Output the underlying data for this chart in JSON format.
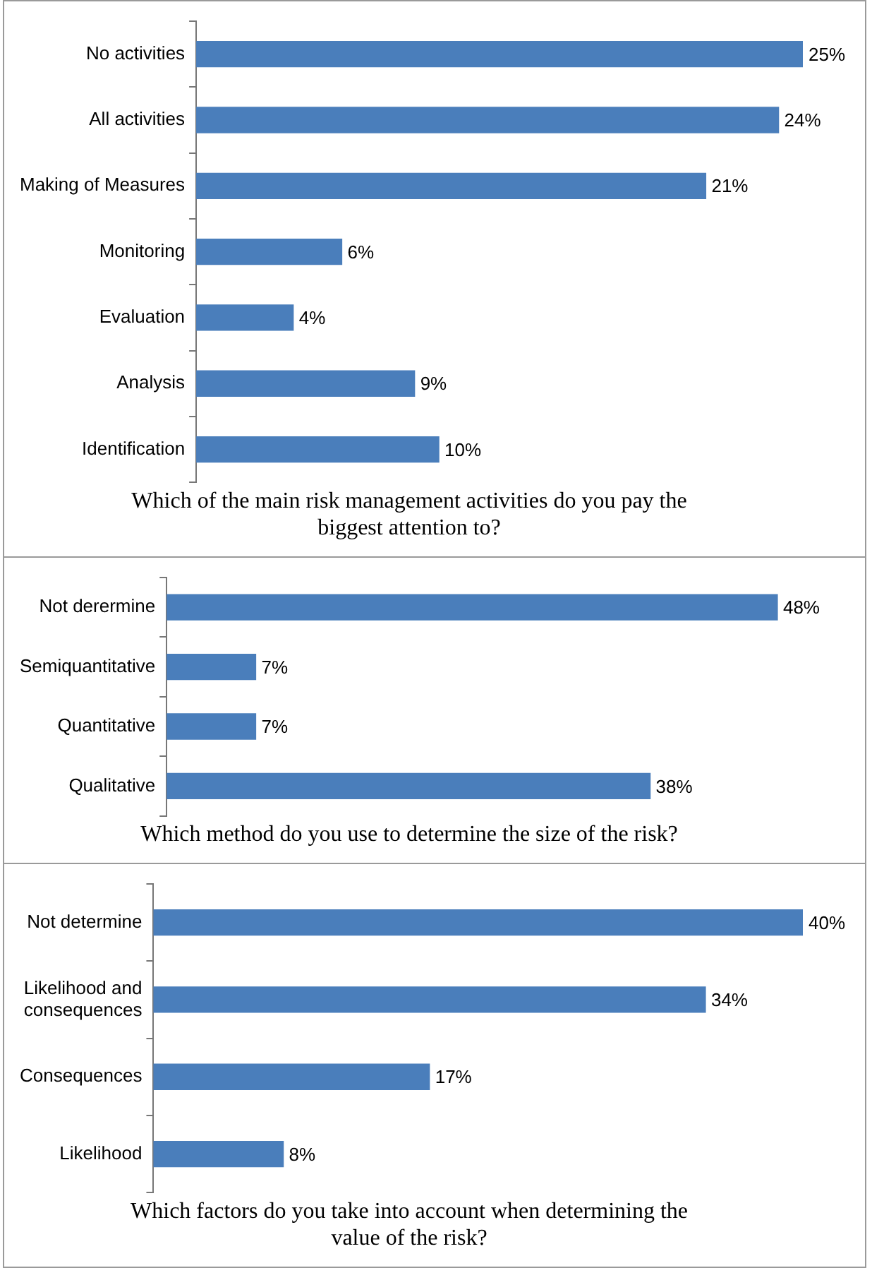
{
  "chart_data": [
    {
      "type": "bar",
      "orientation": "horizontal",
      "title": "Which of the main risk management activities do you pay the biggest attention to?",
      "categories": [
        "No activities",
        "All activities",
        "Making of Measures",
        "Monitoring",
        "Evaluation",
        "Analysis",
        "Identification"
      ],
      "values": [
        25,
        24,
        21,
        6,
        4,
        9,
        10
      ],
      "value_labels": [
        "25%",
        "24%",
        "21%",
        "6%",
        "4%",
        "9%",
        "10%"
      ],
      "color": "#4a7ebb",
      "legend": false,
      "tick_labels": "y"
    },
    {
      "type": "bar",
      "orientation": "horizontal",
      "title": "Which method do you use to determine the size of the risk?",
      "categories": [
        "Not derermine",
        "Semiquantitative",
        "Quantitative",
        "Qualitative"
      ],
      "values": [
        48,
        7,
        7,
        38
      ],
      "value_labels": [
        "48%",
        "7%",
        "7%",
        "38%"
      ],
      "color": "#4a7ebb",
      "legend": false,
      "tick_labels": "y"
    },
    {
      "type": "bar",
      "orientation": "horizontal",
      "title": "Which factors do you take into account when determining the value of the risk?",
      "categories": [
        "Not determine",
        "Likelihood and consequences",
        "Consequences",
        "Likelihood"
      ],
      "values": [
        40,
        34,
        17,
        8
      ],
      "value_labels": [
        "40%",
        "34%",
        "17%",
        "8%"
      ],
      "color": "#4a7ebb",
      "legend": false,
      "tick_labels": "y"
    }
  ]
}
